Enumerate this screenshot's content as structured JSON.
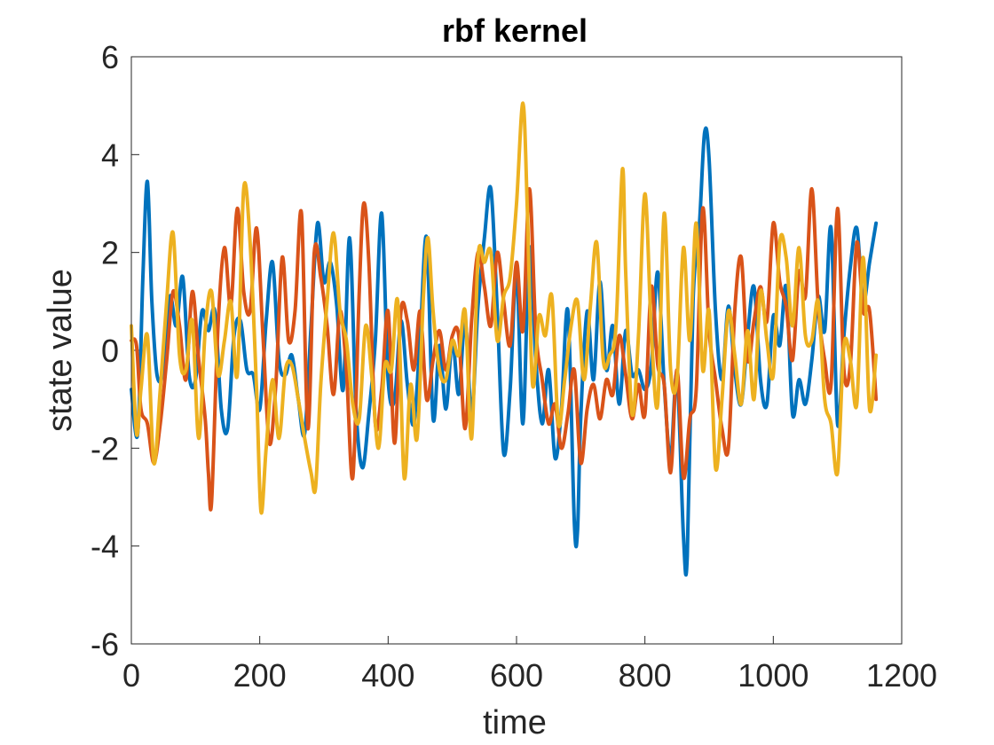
{
  "chart_data": {
    "type": "line",
    "title": "rbf kernel",
    "xlabel": "time",
    "ylabel": "state value",
    "xlim": [
      0,
      1200
    ],
    "ylim": [
      -6,
      6
    ],
    "xticks": [
      0,
      200,
      400,
      600,
      800,
      1000,
      1200
    ],
    "yticks": [
      -6,
      -4,
      -2,
      0,
      2,
      4,
      6
    ],
    "xtick_labels": [
      "0",
      "200",
      "400",
      "600",
      "800",
      "1000",
      "1200"
    ],
    "ytick_labels": [
      "-6",
      "-4",
      "-2",
      "0",
      "2",
      "4",
      "6"
    ],
    "grid": false,
    "legend": "none",
    "series": [
      {
        "color": "#0072BD",
        "x": [
          0,
          10,
          18,
          25,
          32,
          40,
          50,
          60,
          70,
          80,
          90,
          100,
          110,
          120,
          130,
          140,
          150,
          160,
          170,
          180,
          190,
          200,
          210,
          220,
          230,
          240,
          250,
          260,
          270,
          280,
          290,
          300,
          310,
          320,
          330,
          340,
          350,
          360,
          370,
          380,
          390,
          400,
          410,
          420,
          430,
          440,
          450,
          460,
          470,
          480,
          490,
          500,
          510,
          520,
          530,
          540,
          550,
          560,
          570,
          580,
          590,
          600,
          610,
          620,
          630,
          640,
          650,
          660,
          670,
          680,
          690,
          695,
          700,
          710,
          720,
          730,
          740,
          750,
          760,
          770,
          780,
          790,
          800,
          810,
          820,
          830,
          840,
          850,
          860,
          866,
          875,
          885,
          893,
          900,
          910,
          920,
          930,
          940,
          950,
          960,
          970,
          980,
          990,
          1000,
          1010,
          1020,
          1030,
          1040,
          1050,
          1060,
          1070,
          1080,
          1090,
          1100,
          1110,
          1120,
          1130,
          1140,
          1150,
          1160
        ],
        "y": [
          -0.8,
          -1.7,
          1.5,
          3.45,
          1.0,
          -0.5,
          -0.4,
          1.1,
          0.5,
          1.5,
          -0.5,
          -0.6,
          0.8,
          0.4,
          0.8,
          -1.2,
          -1.6,
          0.3,
          0.6,
          -0.4,
          -0.5,
          -1.2,
          0.6,
          1.8,
          -0.2,
          -0.5,
          -0.1,
          -1.0,
          -1.7,
          0.5,
          2.6,
          1.4,
          1.8,
          0.9,
          -0.8,
          2.3,
          -1.2,
          -2.4,
          -1.3,
          0.2,
          2.8,
          -0.6,
          -1.0,
          0.6,
          -0.7,
          -1.5,
          0.3,
          2.3,
          -1.4,
          0.1,
          -1.2,
          0.2,
          -0.9,
          0.6,
          -1.3,
          0.9,
          2.3,
          3.3,
          0.8,
          -2.1,
          -0.8,
          1.6,
          -1.5,
          2.1,
          -0.2,
          -1.5,
          -0.4,
          -2.2,
          -1.2,
          0.8,
          -3.5,
          -3.7,
          -1.4,
          0.8,
          -0.6,
          1.4,
          -0.4,
          0.5,
          -1.1,
          0.4,
          -0.5,
          -0.4,
          -0.8,
          -0.3,
          1.6,
          -0.7,
          -2.2,
          -0.5,
          -3.8,
          -4.2,
          1.0,
          2.6,
          4.45,
          3.9,
          0.8,
          -0.6,
          0.9,
          -0.4,
          -1.1,
          0.3,
          1.3,
          -0.6,
          -1.1,
          0.7,
          0.1,
          1.3,
          -1.3,
          -0.6,
          -1.1,
          -0.2,
          1.1,
          0.4,
          2.5,
          -1.5,
          0.3,
          1.7,
          2.5,
          1.0,
          1.8,
          2.6
        ]
      },
      {
        "color": "#D95319",
        "x": [
          0,
          8,
          15,
          25,
          35,
          45,
          55,
          65,
          75,
          85,
          95,
          105,
          115,
          120,
          125,
          135,
          145,
          155,
          165,
          175,
          185,
          195,
          205,
          215,
          225,
          235,
          245,
          255,
          265,
          275,
          285,
          295,
          305,
          315,
          325,
          335,
          345,
          355,
          362,
          370,
          380,
          390,
          400,
          410,
          420,
          430,
          440,
          450,
          460,
          470,
          480,
          490,
          500,
          510,
          520,
          530,
          540,
          550,
          560,
          570,
          580,
          590,
          600,
          610,
          620,
          630,
          640,
          650,
          660,
          670,
          680,
          690,
          700,
          710,
          720,
          730,
          740,
          750,
          760,
          770,
          780,
          790,
          800,
          810,
          820,
          830,
          840,
          850,
          860,
          870,
          880,
          890,
          900,
          910,
          920,
          930,
          940,
          950,
          960,
          970,
          980,
          990,
          1000,
          1010,
          1020,
          1030,
          1040,
          1050,
          1060,
          1070,
          1080,
          1090,
          1100,
          1110,
          1120,
          1130,
          1140,
          1150,
          1160
        ],
        "y": [
          0.2,
          0.1,
          -1.2,
          -1.5,
          -2.3,
          -1.5,
          -0.2,
          1.2,
          0.5,
          -0.6,
          1.2,
          -0.2,
          -1.4,
          -2.5,
          -3.1,
          0.5,
          2.1,
          0.9,
          2.9,
          1.2,
          0.8,
          2.5,
          0.3,
          -1.9,
          -0.7,
          1.9,
          0.2,
          0.8,
          2.8,
          -1.6,
          2.0,
          1.5,
          0.5,
          -0.9,
          0.8,
          -0.4,
          -2.6,
          1.2,
          3.0,
          1.8,
          -1.5,
          -0.8,
          0.8,
          -1.9,
          0.8,
          0.6,
          -0.4,
          0.8,
          -1.0,
          -0.2,
          0.4,
          -0.4,
          0.3,
          0.3,
          -1.6,
          0.6,
          2.0,
          1.3,
          0.5,
          2.0,
          1.0,
          0.1,
          1.8,
          0.4,
          3.3,
          0.4,
          -0.6,
          -1.5,
          -1.1,
          -2.0,
          -1.3,
          -0.4,
          -2.3,
          -1.2,
          -0.7,
          -1.4,
          -0.6,
          -0.9,
          0.3,
          -0.5,
          -1.4,
          -0.7,
          -1.3,
          1.3,
          -0.3,
          -0.7,
          -2.5,
          -0.4,
          -2.6,
          -1.4,
          -0.8,
          2.9,
          0.4,
          -0.6,
          -1.6,
          -2.0,
          0.8,
          1.9,
          -0.2,
          0.6,
          1.3,
          0.6,
          2.6,
          1.4,
          0.9,
          -0.2,
          1.6,
          1.1,
          3.3,
          0.9,
          -0.2,
          -0.7,
          2.9,
          -0.4,
          -0.3,
          2.2,
          0.8,
          0.8,
          -1.0
        ]
      },
      {
        "color": "#EDB120",
        "x": [
          0,
          8,
          15,
          25,
          35,
          45,
          55,
          65,
          75,
          85,
          95,
          105,
          115,
          125,
          135,
          145,
          155,
          165,
          175,
          185,
          195,
          202,
          210,
          220,
          230,
          240,
          250,
          260,
          270,
          280,
          287,
          295,
          305,
          315,
          325,
          335,
          345,
          355,
          365,
          375,
          385,
          395,
          405,
          415,
          425,
          435,
          445,
          455,
          462,
          470,
          480,
          490,
          500,
          510,
          520,
          530,
          540,
          550,
          560,
          570,
          580,
          590,
          600,
          610,
          617,
          625,
          635,
          645,
          655,
          665,
          675,
          685,
          695,
          705,
          715,
          725,
          735,
          745,
          755,
          765,
          770,
          780,
          790,
          800,
          810,
          820,
          830,
          840,
          850,
          860,
          870,
          880,
          890,
          900,
          910,
          920,
          930,
          940,
          950,
          960,
          970,
          980,
          990,
          1000,
          1010,
          1020,
          1030,
          1040,
          1050,
          1060,
          1070,
          1080,
          1090,
          1100,
          1110,
          1120,
          1130,
          1140,
          1150,
          1160
        ],
        "y": [
          0.5,
          -1.7,
          -0.8,
          0.3,
          -2.3,
          -0.8,
          1.0,
          2.4,
          -0.1,
          -0.4,
          0.6,
          -1.8,
          0.4,
          1.2,
          -0.5,
          0.2,
          1.0,
          -0.5,
          3.3,
          2.2,
          -0.8,
          -3.3,
          -2.0,
          -0.6,
          -1.8,
          -0.4,
          -0.3,
          -1.0,
          -1.8,
          -2.5,
          -2.8,
          -0.7,
          1.0,
          2.4,
          0.8,
          0.2,
          -1.1,
          -1.4,
          0.5,
          -0.6,
          -2.0,
          -0.3,
          -0.4,
          1.0,
          -2.6,
          -0.7,
          -1.8,
          1.1,
          2.3,
          0.8,
          -0.4,
          -0.6,
          0.2,
          -0.1,
          0.8,
          -1.8,
          1.9,
          1.8,
          2.0,
          0.2,
          1.1,
          1.5,
          3.0,
          5.05,
          2.8,
          -0.7,
          0.7,
          0.3,
          1.1,
          -1.5,
          -0.6,
          0.5,
          1.0,
          -0.6,
          0.9,
          2.2,
          -0.2,
          -0.1,
          0.5,
          3.7,
          1.6,
          -1.3,
          0.3,
          3.2,
          0.4,
          -1.1,
          2.8,
          -0.4,
          -0.6,
          2.1,
          0.2,
          2.6,
          -0.4,
          0.8,
          -2.4,
          -1.0,
          0.8,
          -0.1,
          -1.1,
          0.4,
          -1.0,
          1.2,
          0.2,
          -0.5,
          2.2,
          1.9,
          0.5,
          2.1,
          0.3,
          0.2,
          1.0,
          -1.0,
          -1.5,
          -2.5,
          0.1,
          -0.2,
          -1.1,
          1.9,
          -1.2,
          -0.1
        ]
      }
    ]
  }
}
